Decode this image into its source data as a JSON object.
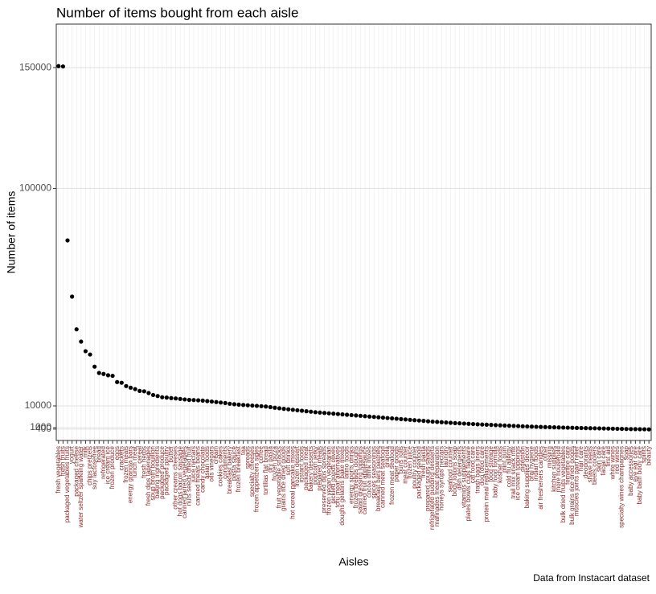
{
  "chart_data": {
    "type": "scatter",
    "title": "Number of items bought from each aisle",
    "x_label": "Aisles",
    "y_label": "Number of items",
    "caption": "Data from Instacart dataset",
    "color": "#000000",
    "label_color": "#8b2a2a",
    "grid": true,
    "ylim": [
      -4300,
      168000
    ],
    "yticks": [
      400,
      1000,
      10000,
      100000,
      150000
    ],
    "categories": [
      "fresh vegetables",
      "fresh fruits",
      "packaged vegetables fruits",
      "yogurt",
      "packaged cheese",
      "water seltzer sparkling water",
      "milk",
      "chips pretzels",
      "soy lactosefree",
      "bread",
      "refrigerated",
      "ice cream ice",
      "frozen produce",
      "eggs",
      "crackers",
      "frozen meals",
      "energy granola bars",
      "lunch meat",
      "cereal",
      "fresh herbs",
      "fresh dips tapenades",
      "soup broth bouillon",
      "baking ingredients",
      "packaged produce",
      "packaged poultry",
      "butter",
      "other creams cheeses",
      "hot dogs bacon sausage",
      "canned jarred vegetables",
      "nuts seeds dried fruit",
      "juice nectars",
      "canned meals beans",
      "candy chocolate",
      "asian foods",
      "oils vinegars",
      "cream",
      "cookies cakes",
      "condiments",
      "breakfast bakery",
      "pasta sauce",
      "frozen breakfast",
      "tea",
      "spreads",
      "specialty cheeses",
      "frozen appetizers sides",
      "coffee",
      "tortillas flat bread",
      "dry pasta",
      "frozen pizza",
      "fruit vegetable snacks",
      "grains rice dried goods",
      "soft drinks",
      "hot cereal pancake mixes",
      "frozen dessert",
      "instant foods",
      "packaged meat",
      "bakery desserts",
      "popcorn jerky",
      "prepared meals",
      "preserved dips spreads",
      "frozen vegan vegetarian",
      "pickled goods olives",
      "tofu meat alternatives",
      "doughs gelatins bake mixes",
      "latino foods",
      "energy sports drinks",
      "frozen breads doughs",
      "salad dressing toppings",
      "canned fruit applesauce",
      "cocoa drink mixes",
      "spices seasonings",
      "breakfast bars pastries",
      "canned meat seafood",
      "granola",
      "frozen meat seafood",
      "paper goods",
      "buns rolls",
      "meat counter",
      "frozen juice",
      "poultry counter",
      "packaged seafood",
      "fresh pasta",
      "prepared soups salads",
      "refrigerated pudding desserts",
      "marinades meat preparation",
      "honeys syrups nectars",
      "laundry",
      "seafood counter",
      "body lotions soap",
      "dish detergents",
      "vitamins supplements",
      "plates bowls cups flatware",
      "cat food care",
      "trash bags liners",
      "dog food care",
      "protein meal replacements",
      "food storage",
      "baby food formula",
      "kosher foods",
      "mint gum",
      "cold flu allergy",
      "trail mix snack mix",
      "ice cream toppings",
      "digestion",
      "baking supplies decor",
      "oral hygiene",
      "indian foods",
      "air fresheners candles",
      "other",
      "missing",
      "kitchen supplies",
      "more household",
      "bulk dried fruits vegetables",
      "feminine care",
      "bulk grains rice dried goods",
      "muscles joints pain relief",
      "hair care",
      "deodorants",
      "shave needs",
      "beers coolers",
      "skin care",
      "facial care",
      "first aid",
      "white wines",
      "red wines",
      "specialty wines champagnes",
      "soap",
      "baby accessories",
      "eye ear care",
      "baby bath body care",
      "spirits",
      "beauty"
    ],
    "values": [
      150609,
      150473,
      78493,
      55240,
      41699,
      36617,
      32644,
      31269,
      26240,
      23635,
      23228,
      22676,
      22453,
      19875,
      19592,
      18221,
      17551,
      16957,
      16201,
      16052,
      15320,
      14520,
      14100,
      13600,
      13460,
      13250,
      13100,
      12900,
      12680,
      12500,
      12430,
      12320,
      12200,
      12000,
      11800,
      11600,
      11400,
      11200,
      10900,
      10700,
      10550,
      10400,
      10280,
      10150,
      10020,
      9900,
      9750,
      9500,
      9250,
      9020,
      8800,
      8600,
      8400,
      8200,
      8000,
      7800,
      7600,
      7400,
      7250,
      7100,
      6950,
      6800,
      6650,
      6500,
      6350,
      6200,
      6050,
      5900,
      5750,
      5600,
      5450,
      5300,
      5150,
      5000,
      4850,
      4700,
      4550,
      4400,
      4250,
      4100,
      3950,
      3800,
      3650,
      3500,
      3380,
      3260,
      3140,
      3020,
      2900,
      2800,
      2700,
      2600,
      2500,
      2400,
      2300,
      2220,
      2140,
      2060,
      1980,
      1900,
      1820,
      1740,
      1660,
      1580,
      1500,
      1440,
      1380,
      1320,
      1260,
      1200,
      1150,
      1100,
      1050,
      1000,
      950,
      900,
      860,
      820,
      780,
      740,
      700,
      660,
      620,
      580,
      540,
      500,
      460,
      420,
      390,
      360,
      330,
      290
    ]
  }
}
